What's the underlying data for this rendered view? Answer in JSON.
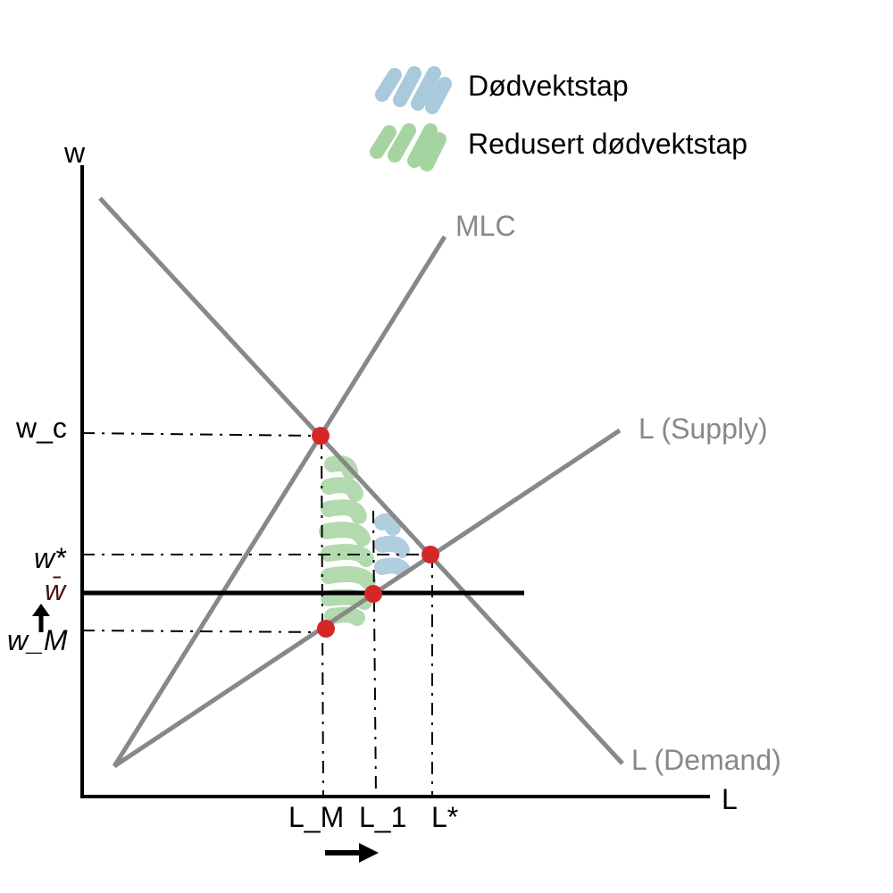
{
  "legend": {
    "deadweight_loss": "Dødvektstap",
    "reduced_deadweight_loss": "Redusert dødvektstap"
  },
  "axes": {
    "y_label": "w",
    "x_label": "L"
  },
  "curves": {
    "mlc": "MLC",
    "supply": "L (Supply)",
    "demand": "L (Demand)",
    "min_wage_line": "w̄"
  },
  "wage_ticks": {
    "w_c": "w_c",
    "w_star": "w*",
    "w_bar": "w̄",
    "w_m": "w_M",
    "up_arrow": "↑"
  },
  "quantity_ticks": {
    "l_m": "L_M",
    "l_1": "L_1",
    "l_star": "L*",
    "right_arrow": "→"
  },
  "colors": {
    "curve": "#888888",
    "axis": "#000000",
    "point": "#d62728",
    "deadweight_fill": "#a9c9dc",
    "reduced_fill": "#a6d4a0"
  }
}
